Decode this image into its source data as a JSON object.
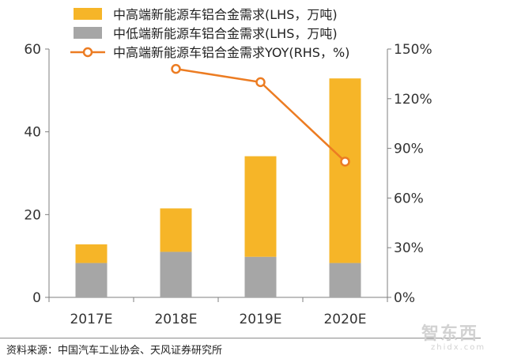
{
  "chart_data": {
    "type": "bar",
    "stacked": true,
    "categories": [
      "2017E",
      "2018E",
      "2019E",
      "2020E"
    ],
    "series": [
      {
        "name": "中低端新能源车铝合金需求(LHS，万吨)",
        "axis": "left",
        "kind": "bar",
        "color": "#a6a6a6",
        "values": [
          8.3,
          11,
          9.8,
          8.3
        ]
      },
      {
        "name": "中高端新能源车铝合金需求(LHS，万吨)",
        "axis": "left",
        "kind": "bar",
        "color": "#f6b528",
        "values": [
          4.5,
          10.5,
          24.3,
          44.6
        ]
      },
      {
        "name": "中高端新能源车铝合金需求YOY(RHS，%)",
        "axis": "right",
        "kind": "line",
        "color": "#ec7c22",
        "values": [
          null,
          138,
          130,
          82
        ]
      }
    ],
    "legend": [
      {
        "label": "中高端新能源车铝合金需求(LHS，万吨)",
        "kind": "bar",
        "color": "#f6b528"
      },
      {
        "label": "中低端新能源车铝合金需求(LHS，万吨)",
        "kind": "bar",
        "color": "#a6a6a6"
      },
      {
        "label": "中高端新能源车铝合金需求YOY(RHS，%)",
        "kind": "line",
        "color": "#ec7c22"
      }
    ],
    "legend_position": "top",
    "left_axis": {
      "min": 0,
      "max": 60,
      "ticks": [
        0,
        20,
        40,
        60
      ],
      "tick_labels": [
        "0",
        "20",
        "40",
        "60"
      ]
    },
    "right_axis": {
      "min": 0,
      "max": 150,
      "ticks": [
        0,
        30,
        60,
        90,
        120,
        150
      ],
      "tick_labels": [
        "0%",
        "30%",
        "60%",
        "90%",
        "120%",
        "150%"
      ]
    },
    "grid": false
  },
  "source": "资料来源：中国汽车工业协会、天风证券研究所",
  "watermark": {
    "text": "智东西",
    "sub": "zhidx.com"
  }
}
